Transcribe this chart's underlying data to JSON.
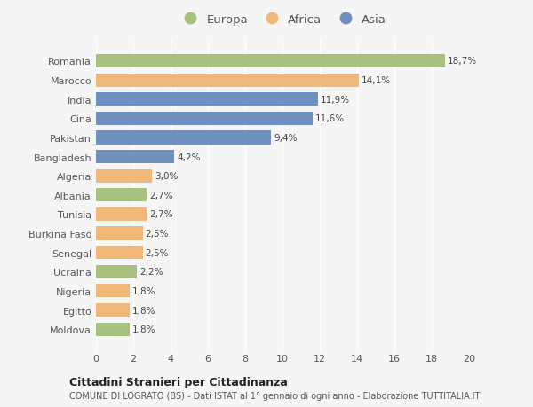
{
  "categories": [
    "Moldova",
    "Egitto",
    "Nigeria",
    "Ucraina",
    "Senegal",
    "Burkina Faso",
    "Tunisia",
    "Albania",
    "Algeria",
    "Bangladesh",
    "Pakistan",
    "Cina",
    "India",
    "Marocco",
    "Romania"
  ],
  "values": [
    1.8,
    1.8,
    1.8,
    2.2,
    2.5,
    2.5,
    2.7,
    2.7,
    3.0,
    4.2,
    9.4,
    11.6,
    11.9,
    14.1,
    18.7
  ],
  "labels": [
    "1,8%",
    "1,8%",
    "1,8%",
    "2,2%",
    "2,5%",
    "2,5%",
    "2,7%",
    "2,7%",
    "3,0%",
    "4,2%",
    "9,4%",
    "11,6%",
    "11,9%",
    "14,1%",
    "18,7%"
  ],
  "colors": [
    "#a8c080",
    "#f0b878",
    "#f0b878",
    "#a8c080",
    "#f0b878",
    "#f0b878",
    "#f0b878",
    "#a8c080",
    "#f0b878",
    "#7090c0",
    "#7090c0",
    "#7090c0",
    "#7090c0",
    "#f0b878",
    "#a8c080"
  ],
  "legend_labels": [
    "Europa",
    "Africa",
    "Asia"
  ],
  "legend_colors": [
    "#a8c080",
    "#f0b878",
    "#7090c0"
  ],
  "xlim": [
    0,
    20
  ],
  "xticks": [
    0,
    2,
    4,
    6,
    8,
    10,
    12,
    14,
    16,
    18,
    20
  ],
  "title1": "Cittadini Stranieri per Cittadinanza",
  "title2": "COMUNE DI LOGRATO (BS) - Dati ISTAT al 1° gennaio di ogni anno - Elaborazione TUTTITALIA.IT",
  "bg_color": "#f5f5f5",
  "grid_color": "#ffffff",
  "bar_height": 0.7
}
